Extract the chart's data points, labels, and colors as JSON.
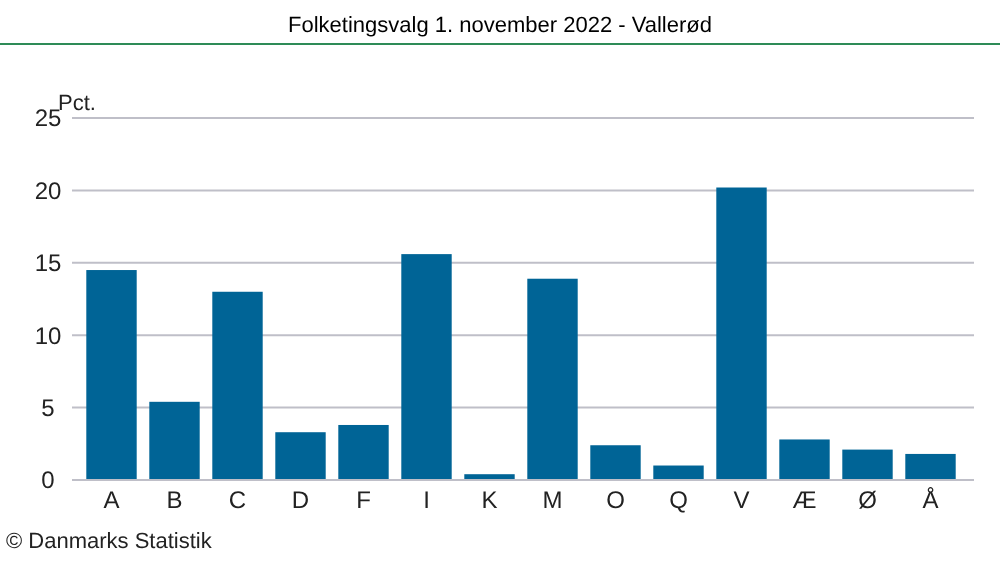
{
  "chart_data": {
    "type": "bar",
    "title": "Folketingsvalg 1. november 2022 - Vallerød",
    "ylabel": "Pct.",
    "categories": [
      "A",
      "B",
      "C",
      "D",
      "F",
      "I",
      "K",
      "M",
      "O",
      "Q",
      "V",
      "Æ",
      "Ø",
      "Å"
    ],
    "values": [
      14.5,
      5.4,
      13.0,
      3.3,
      3.8,
      15.6,
      0.4,
      13.9,
      2.4,
      1.0,
      20.2,
      2.8,
      2.1,
      1.8
    ],
    "color": "#006496",
    "ylim": [
      0,
      25
    ],
    "yticks": [
      0,
      5,
      10,
      15,
      20,
      25
    ],
    "grid": "y",
    "annotations": [
      "© Danmarks Statistik"
    ]
  }
}
